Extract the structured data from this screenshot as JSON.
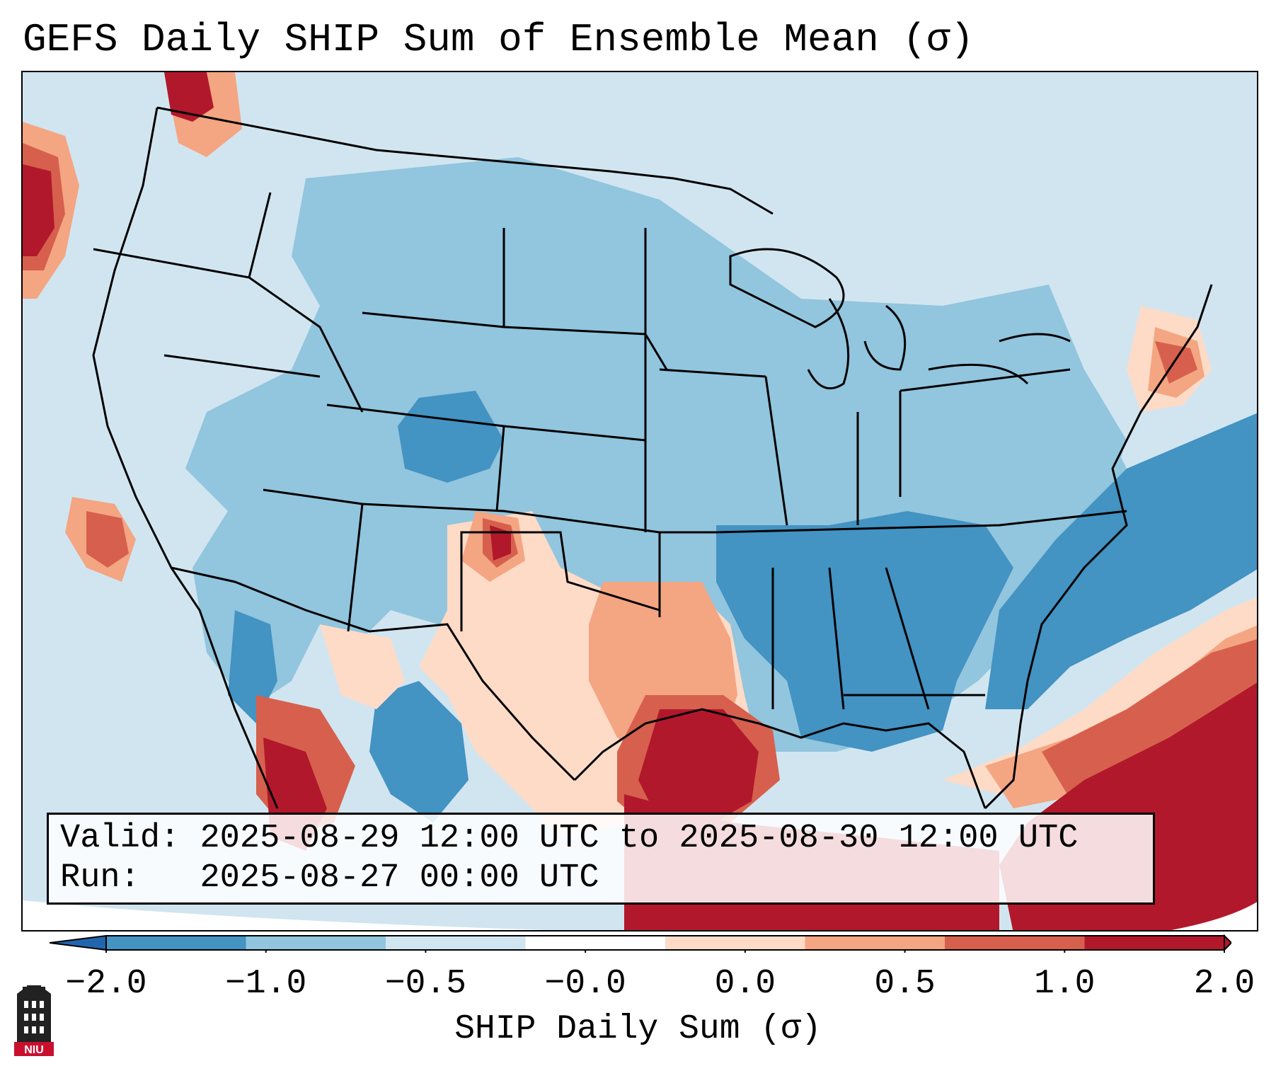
{
  "title": "GEFS Daily SHIP Sum of Ensemble Mean (σ)",
  "info": {
    "valid_label": "Valid:",
    "valid_value": "2025-08-29 12:00 UTC to 2025-08-30 12:00 UTC",
    "run_label": "Run:",
    "run_value": "2025-08-27 00:00 UTC"
  },
  "colorbar": {
    "label": "SHIP Daily Sum (σ)",
    "ticks": [
      "−2.0",
      "−1.0",
      "−0.5",
      "−0.0",
      "0.0",
      "0.5",
      "1.0",
      "2.0"
    ],
    "colors": [
      "#4393c3",
      "#92c5de",
      "#d1e5f0",
      "#ffffff",
      "#fddbc7",
      "#f4a582",
      "#d6604d",
      "#b2182b"
    ],
    "extend_low_color": "#2166ac",
    "extend_high_color": "#b2182b"
  },
  "logo": {
    "text": "NIU",
    "color": "#c8102e"
  }
}
